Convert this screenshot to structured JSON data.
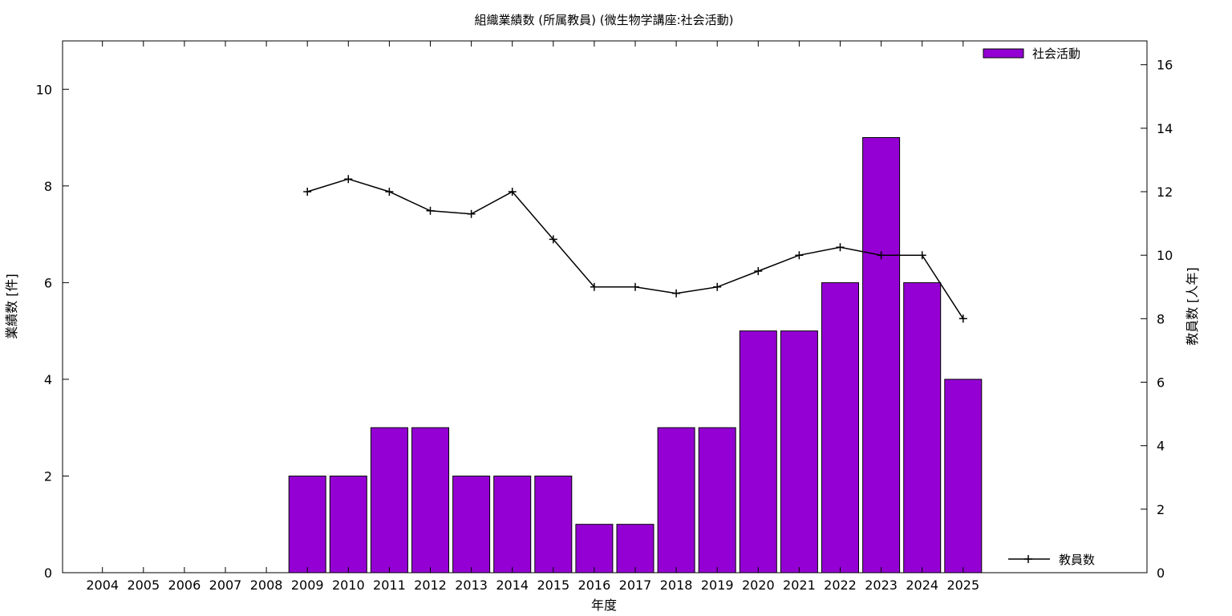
{
  "chart_data": {
    "type": "bar",
    "title": "組織業績数 (所属教員) (微生物学講座:社会活動)",
    "xlabel": "年度",
    "ylabel": "業績数 [件]",
    "y2label": "教員数 [人年]",
    "categories": [
      "2004",
      "2005",
      "2006",
      "2007",
      "2008",
      "2009",
      "2010",
      "2011",
      "2012",
      "2013",
      "2014",
      "2015",
      "2016",
      "2017",
      "2018",
      "2019",
      "2020",
      "2021",
      "2022",
      "2023",
      "2024",
      "2025"
    ],
    "ylim": [
      0,
      11
    ],
    "yticks": [
      "0",
      "2",
      "4",
      "6",
      "8",
      "10"
    ],
    "y2lim": [
      0,
      16.75
    ],
    "y2ticks": [
      "0",
      "2",
      "4",
      "6",
      "8",
      "10",
      "12",
      "14",
      "16"
    ],
    "grid": false,
    "series": [
      {
        "name": "社会活動",
        "type": "bar",
        "axis": "left",
        "color": "#9400d3",
        "values": [
          null,
          null,
          null,
          null,
          null,
          2,
          2,
          3,
          3,
          2,
          2,
          2,
          1,
          1,
          3,
          3,
          5,
          5,
          6,
          9,
          6,
          4
        ]
      },
      {
        "name": "教員数",
        "type": "line",
        "axis": "right",
        "color": "#000000",
        "marker": "plus",
        "values": [
          null,
          null,
          null,
          null,
          null,
          12,
          12.4,
          12,
          11.4,
          11.3,
          12,
          10.5,
          9,
          9,
          8.8,
          9,
          9.5,
          10,
          10.25,
          10,
          10,
          8
        ]
      }
    ],
    "legend": "top-right (bars), bottom-right (line)"
  }
}
